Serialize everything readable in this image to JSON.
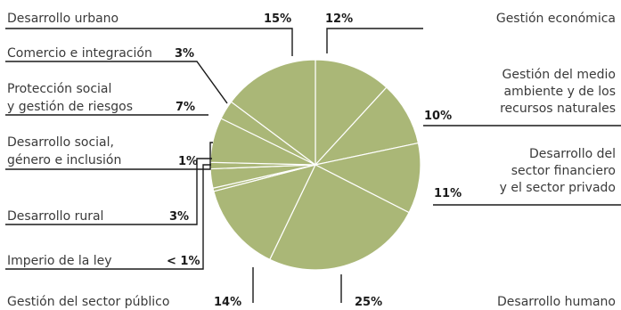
{
  "chart_data": {
    "type": "pie",
    "start_angle_deg": 0,
    "direction": "clockwise",
    "slice_color": "#aab777",
    "border_color": "#ffffff",
    "leader_color": "#1a1a1a",
    "slices": [
      {
        "name": "Gestión económica",
        "value": 12,
        "display": "12%"
      },
      {
        "name": "Gestión del medio ambiente y de los recursos naturales",
        "value": 10,
        "display": "10%"
      },
      {
        "name": "Desarrollo del sector financiero y el sector privado",
        "value": 11,
        "display": "11%"
      },
      {
        "name": "Desarrollo humano",
        "value": 25,
        "display": "25%"
      },
      {
        "name": "Gestión del sector público",
        "value": 14,
        "display": "14%"
      },
      {
        "name": "Imperio de la ley",
        "value": 0.5,
        "display": "< 1%"
      },
      {
        "name": "Desarrollo rural",
        "value": 3,
        "display": "3%"
      },
      {
        "name": "Desarrollo social, género e inclusión",
        "value": 1,
        "display": "1%"
      },
      {
        "name": "Protección social y gestión de riesgos",
        "value": 7,
        "display": "7%"
      },
      {
        "name": "Comercio e integración",
        "value": 3,
        "display": "3%"
      },
      {
        "name": "Desarrollo urbano",
        "value": 15,
        "display": "15%"
      }
    ]
  },
  "labels": [
    {
      "lines": [
        "Gestión económica"
      ],
      "pct": "12%"
    },
    {
      "lines": [
        "Gestión del medio",
        "ambiente y de los",
        "recursos naturales"
      ],
      "pct": "10%"
    },
    {
      "lines": [
        "Desarrollo del",
        "sector financiero",
        "y el sector privado"
      ],
      "pct": "11%"
    },
    {
      "lines": [
        "Desarrollo humano"
      ],
      "pct": "25%"
    },
    {
      "lines": [
        "Gestión del sector público"
      ],
      "pct": "14%"
    },
    {
      "lines": [
        "Imperio de la ley"
      ],
      "pct": "< 1%"
    },
    {
      "lines": [
        "Desarrollo rural"
      ],
      "pct": "3%"
    },
    {
      "lines": [
        "Desarrollo social,",
        "género e inclusión"
      ],
      "pct": "1%"
    },
    {
      "lines": [
        "Protección social",
        "y gestión de riesgos"
      ],
      "pct": "7%"
    },
    {
      "lines": [
        "Comercio e integración"
      ],
      "pct": "3%"
    },
    {
      "lines": [
        "Desarrollo urbano"
      ],
      "pct": "15%"
    }
  ]
}
